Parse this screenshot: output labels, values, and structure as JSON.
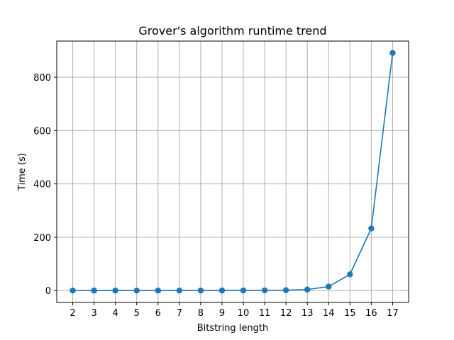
{
  "chart_data": {
    "type": "line",
    "title": "Grover's algorithm runtime trend",
    "xlabel": "Bitstring length",
    "ylabel": "Time (s)",
    "x": [
      2,
      3,
      4,
      5,
      6,
      7,
      8,
      9,
      10,
      11,
      12,
      13,
      14,
      15,
      16,
      17
    ],
    "series": [
      {
        "values": [
          0.02,
          0.03,
          0.05,
          0.08,
          0.12,
          0.18,
          0.25,
          0.35,
          0.5,
          0.8,
          1.5,
          4,
          15,
          61,
          233,
          891
        ],
        "color": "#1f77b4",
        "marker": "circle"
      }
    ],
    "xticks": [
      2,
      3,
      4,
      5,
      6,
      7,
      8,
      9,
      10,
      11,
      12,
      13,
      14,
      15,
      16,
      17
    ],
    "yticks": [
      0,
      200,
      400,
      600,
      800
    ],
    "xlim": [
      1.25,
      17.75
    ],
    "ylim": [
      -44.5,
      935.5
    ],
    "grid": true
  }
}
